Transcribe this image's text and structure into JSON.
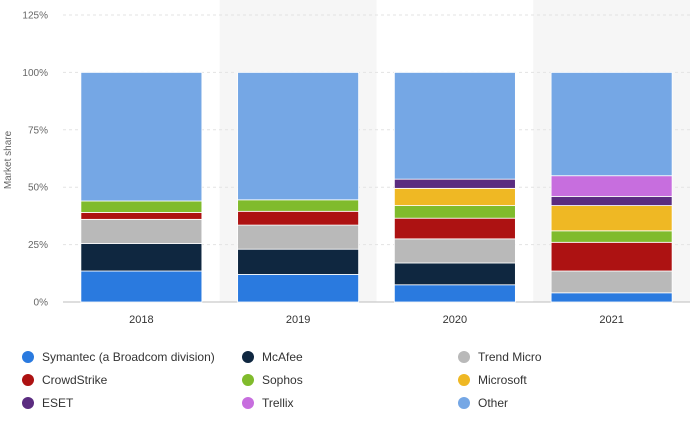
{
  "chart_data": {
    "type": "bar",
    "stacked": true,
    "ylabel": "Market share",
    "ylim": [
      0,
      125
    ],
    "yticks": [
      "0%",
      "25%",
      "50%",
      "75%",
      "100%",
      "125%"
    ],
    "categories": [
      "2018",
      "2019",
      "2020",
      "2021"
    ],
    "grid": true,
    "legend_position": "bottom",
    "series": [
      {
        "name": "Symantec (a Broadcom division)",
        "color": "#2a7adf",
        "values": [
          13.5,
          12.0,
          7.5,
          4.0
        ]
      },
      {
        "name": "McAfee",
        "color": "#0f2740",
        "values": [
          12.0,
          11.0,
          9.5,
          0
        ]
      },
      {
        "name": "Trend Micro",
        "color": "#b9b9b9",
        "values": [
          10.5,
          10.5,
          10.5,
          9.5
        ]
      },
      {
        "name": "CrowdStrike",
        "color": "#ad1212",
        "values": [
          3.0,
          6.0,
          9.0,
          12.5
        ]
      },
      {
        "name": "Sophos",
        "color": "#80bb2c",
        "values": [
          5.0,
          5.0,
          5.5,
          5.0
        ]
      },
      {
        "name": "Microsoft",
        "color": "#efb824",
        "values": [
          0,
          0,
          7.5,
          11.0
        ]
      },
      {
        "name": "ESET",
        "color": "#5b2c80",
        "values": [
          0,
          0,
          4.0,
          4.0
        ]
      },
      {
        "name": "Trellix",
        "color": "#c76ede",
        "values": [
          0,
          0,
          0,
          9.0
        ]
      },
      {
        "name": "Other",
        "color": "#75a7e5",
        "values": [
          56.0,
          55.5,
          46.5,
          45.0
        ]
      }
    ]
  }
}
